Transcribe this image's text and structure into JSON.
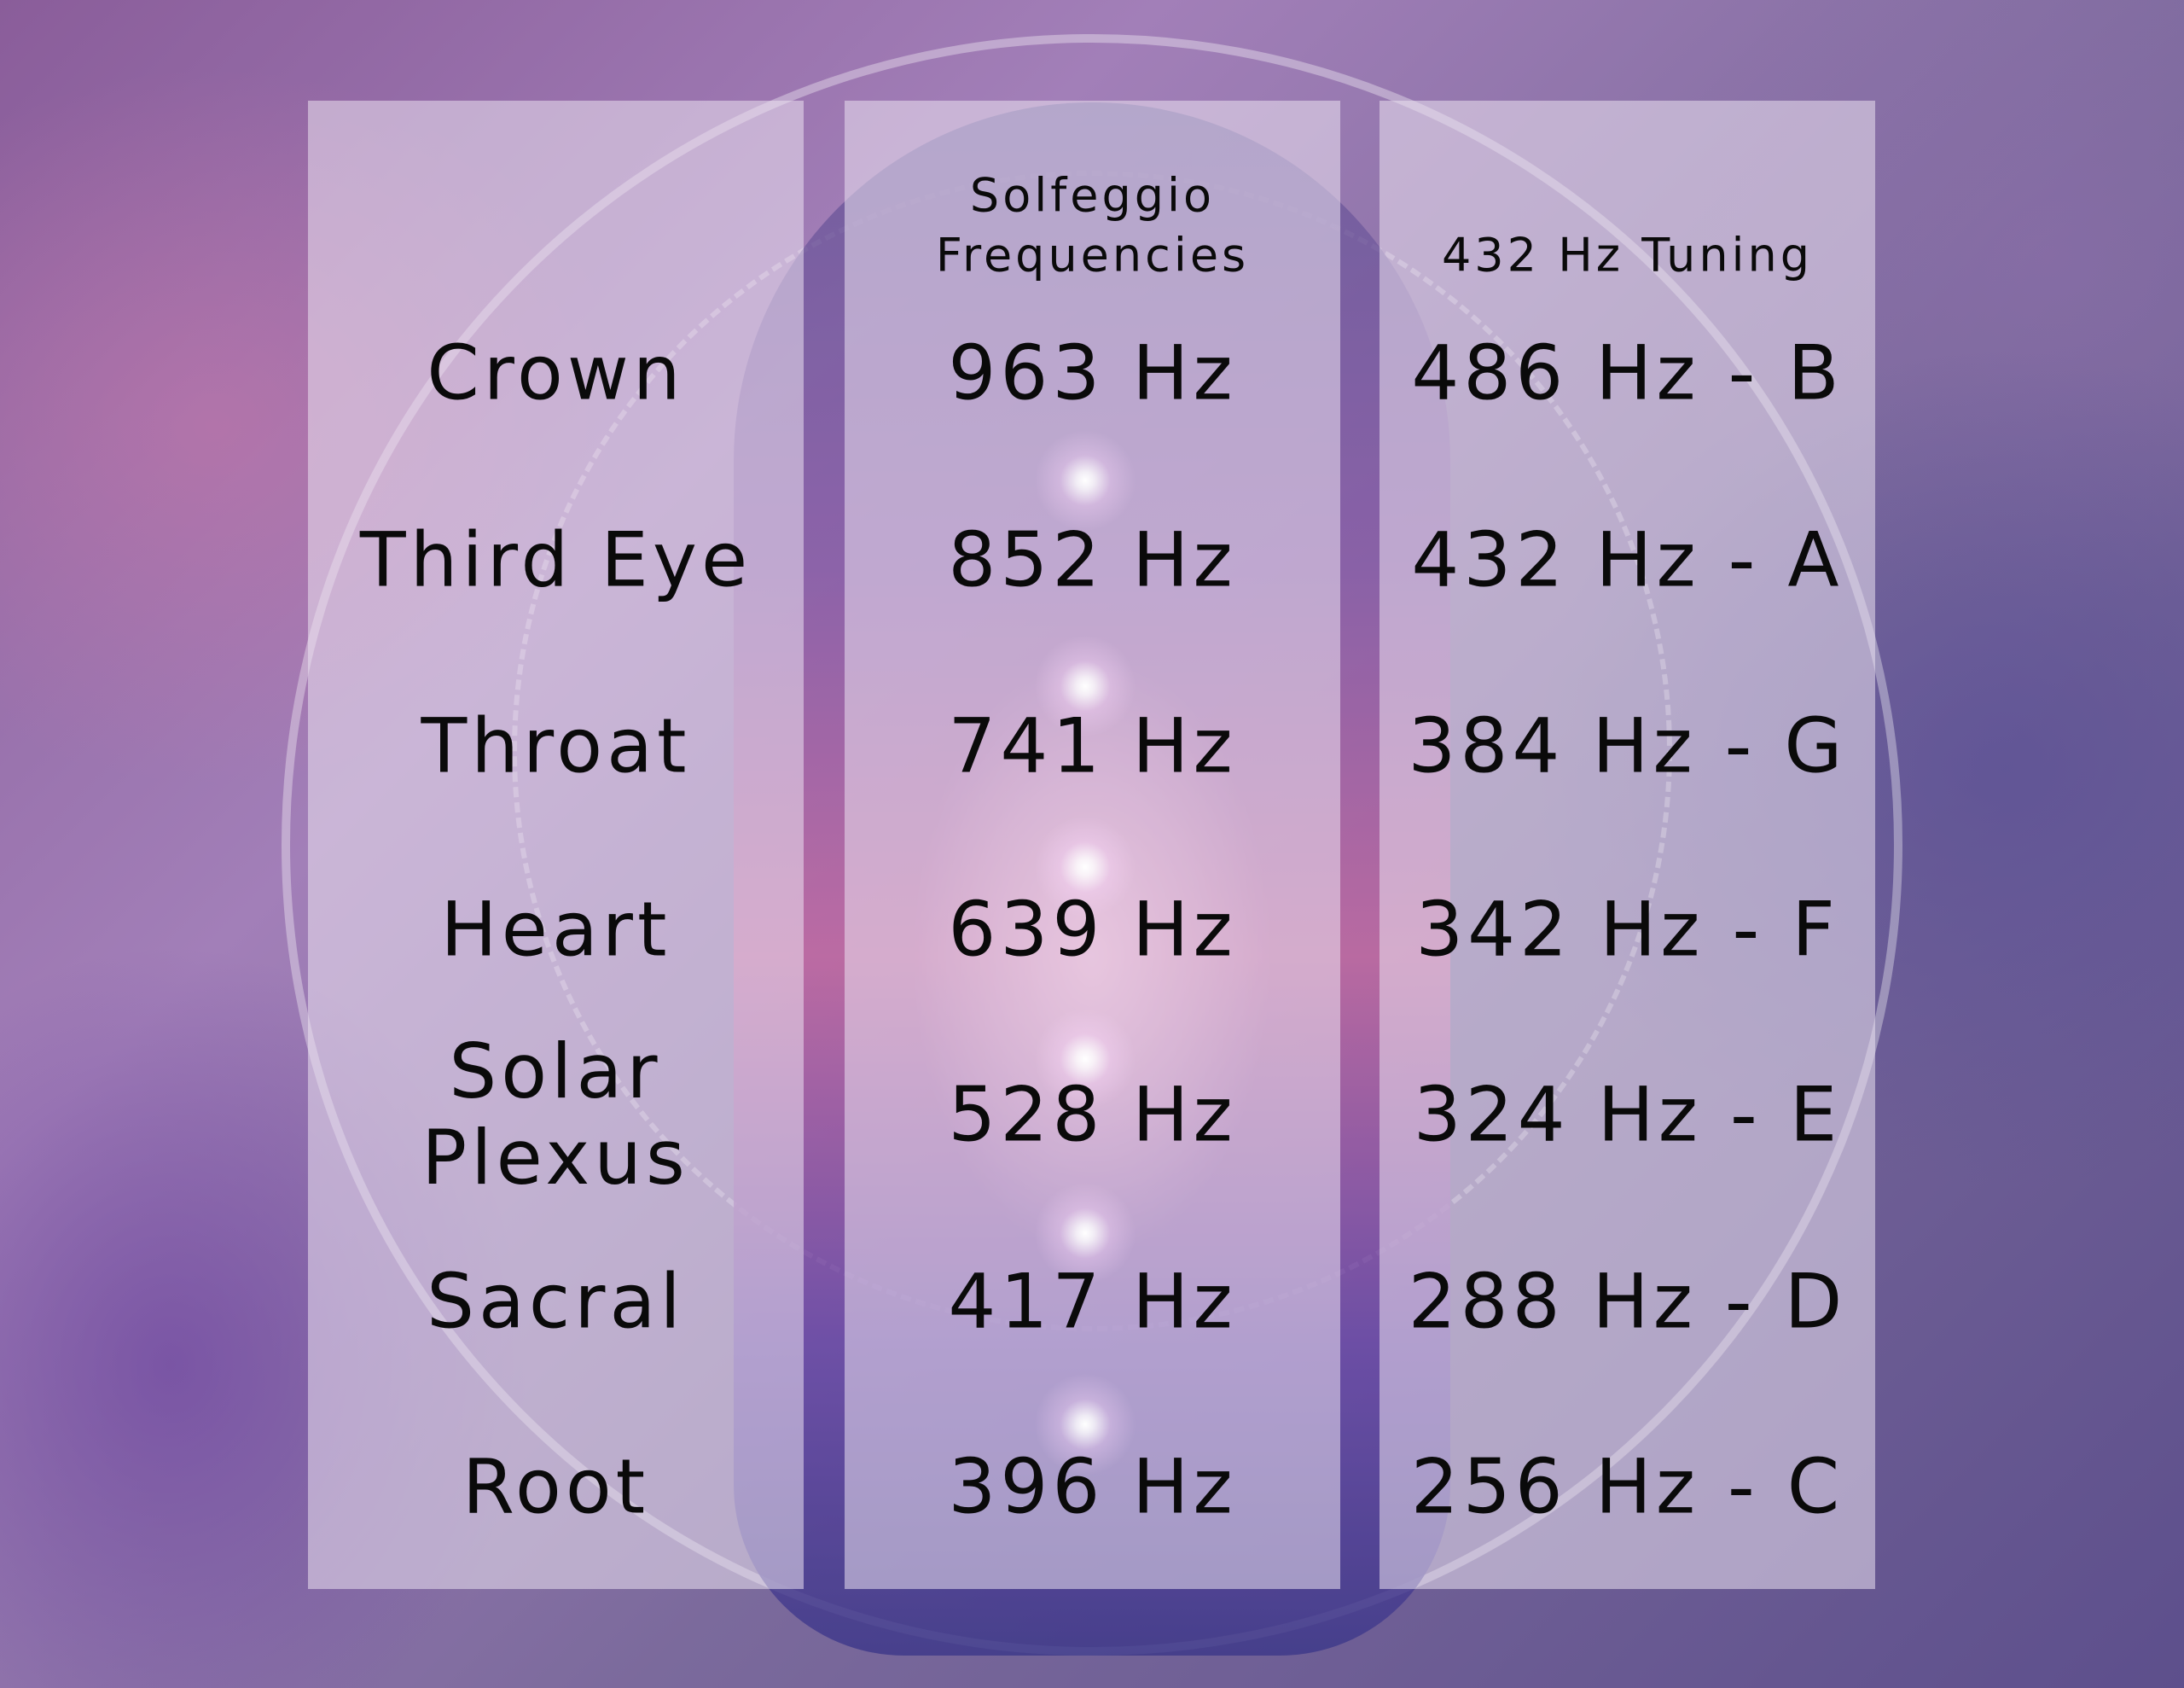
{
  "headers": {
    "chakra": "",
    "solfeggio": [
      "Solfeggio",
      "Frequencies"
    ],
    "tuning": "432 Hz Tuning"
  },
  "rows": [
    {
      "chakra": "Crown",
      "solfeggio": "963 Hz",
      "tuning": "486 Hz - B"
    },
    {
      "chakra": "Third Eye",
      "solfeggio": "852 Hz",
      "tuning": "432 Hz - A"
    },
    {
      "chakra": "Throat",
      "solfeggio": "741 Hz",
      "tuning": "384 Hz - G"
    },
    {
      "chakra": "Heart",
      "solfeggio": "639 Hz",
      "tuning": "342 Hz - F"
    },
    {
      "chakra": "Solar Plexus",
      "solfeggio": "528 Hz",
      "tuning": "324 Hz - E"
    },
    {
      "chakra": "Sacral",
      "solfeggio": "417 Hz",
      "tuning": "288 Hz - D"
    },
    {
      "chakra": "Root",
      "solfeggio": "396 Hz",
      "tuning": "256 Hz - C"
    }
  ],
  "colors": {
    "background": "#8a5d9a",
    "panel": "#ebe1f0",
    "text": "#0a0a0a"
  }
}
